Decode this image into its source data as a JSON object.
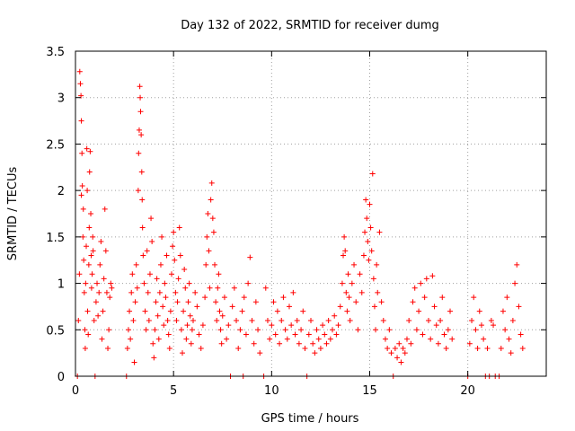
{
  "chart_data": {
    "type": "scatter",
    "title": "Day 132 of 2022, SRMTID for receiver dumg",
    "xlabel": "GPS time / hours",
    "ylabel": "SRMTID / TECUs",
    "xlim": [
      0,
      24
    ],
    "ylim": [
      0,
      3.5
    ],
    "xticks": [
      "0",
      "5",
      "10",
      "15",
      "20"
    ],
    "yticks": [
      "0",
      "0.5",
      "1",
      "1.5",
      "2",
      "2.5",
      "3",
      "3.5"
    ],
    "grid": true,
    "marker": "+",
    "color": "#ff0000",
    "series": [
      {
        "values": [
          [
            0.1,
            0.0
          ],
          [
            0.15,
            0.6
          ],
          [
            0.2,
            1.1
          ],
          [
            0.22,
            3.28
          ],
          [
            0.25,
            3.15
          ],
          [
            0.28,
            3.02
          ],
          [
            0.3,
            2.75
          ],
          [
            0.3,
            1.95
          ],
          [
            0.33,
            2.4
          ],
          [
            0.35,
            2.05
          ],
          [
            0.38,
            1.5
          ],
          [
            0.4,
            1.8
          ],
          [
            0.42,
            1.25
          ],
          [
            0.45,
            0.9
          ],
          [
            0.48,
            0.5
          ],
          [
            0.5,
            0.3
          ],
          [
            0.52,
            1.0
          ],
          [
            0.55,
            1.4
          ],
          [
            0.58,
            2.45
          ],
          [
            0.6,
            2.0
          ],
          [
            0.62,
            0.7
          ],
          [
            0.65,
            0.45
          ],
          [
            0.68,
            1.2
          ],
          [
            0.7,
            1.6
          ],
          [
            0.72,
            2.2
          ],
          [
            0.75,
            2.42
          ],
          [
            0.78,
            1.75
          ],
          [
            0.8,
            1.3
          ],
          [
            0.82,
            0.95
          ],
          [
            0.85,
            1.1
          ],
          [
            0.88,
            1.5
          ],
          [
            0.9,
            1.35
          ],
          [
            0.95,
            0.6
          ],
          [
            1.0,
            0.0
          ],
          [
            1.05,
            0.8
          ],
          [
            1.1,
            1.0
          ],
          [
            1.15,
            0.65
          ],
          [
            1.2,
            0.9
          ],
          [
            1.25,
            1.2
          ],
          [
            1.3,
            1.45
          ],
          [
            1.35,
            0.4
          ],
          [
            1.4,
            0.7
          ],
          [
            1.45,
            1.05
          ],
          [
            1.5,
            1.8
          ],
          [
            1.55,
            1.35
          ],
          [
            1.6,
            0.9
          ],
          [
            1.65,
            0.3
          ],
          [
            1.7,
            0.5
          ],
          [
            1.75,
            0.85
          ],
          [
            1.8,
            1.0
          ],
          [
            1.85,
            0.95
          ],
          [
            2.6,
            0.0
          ],
          [
            2.65,
            0.3
          ],
          [
            2.7,
            0.5
          ],
          [
            2.75,
            0.7
          ],
          [
            2.8,
            0.4
          ],
          [
            2.85,
            0.9
          ],
          [
            2.9,
            1.1
          ],
          [
            2.95,
            0.6
          ],
          [
            3.0,
            0.15
          ],
          [
            3.05,
            0.8
          ],
          [
            3.1,
            1.2
          ],
          [
            3.15,
            0.95
          ],
          [
            3.2,
            2.0
          ],
          [
            3.22,
            2.4
          ],
          [
            3.25,
            2.65
          ],
          [
            3.28,
            3.12
          ],
          [
            3.3,
            3.0
          ],
          [
            3.32,
            2.85
          ],
          [
            3.35,
            2.6
          ],
          [
            3.38,
            2.2
          ],
          [
            3.4,
            1.9
          ],
          [
            3.42,
            1.6
          ],
          [
            3.45,
            1.3
          ],
          [
            3.5,
            1.0
          ],
          [
            3.55,
            0.7
          ],
          [
            3.6,
            0.5
          ],
          [
            3.65,
            1.35
          ],
          [
            3.7,
            0.9
          ],
          [
            3.75,
            0.6
          ],
          [
            3.8,
            1.1
          ],
          [
            3.85,
            1.7
          ],
          [
            3.9,
            1.45
          ],
          [
            3.95,
            0.35
          ],
          [
            4.0,
            0.2
          ],
          [
            4.05,
            0.5
          ],
          [
            4.1,
            0.8
          ],
          [
            4.15,
            1.05
          ],
          [
            4.2,
            0.65
          ],
          [
            4.25,
            0.4
          ],
          [
            4.3,
            0.9
          ],
          [
            4.35,
            1.2
          ],
          [
            4.4,
            1.5
          ],
          [
            4.45,
            0.75
          ],
          [
            4.5,
            0.55
          ],
          [
            4.55,
            1.0
          ],
          [
            4.6,
            0.85
          ],
          [
            4.65,
            1.3
          ],
          [
            4.7,
            0.6
          ],
          [
            4.75,
            0.45
          ],
          [
            4.8,
            0.3
          ],
          [
            4.85,
            0.7
          ],
          [
            4.9,
            1.1
          ],
          [
            4.95,
            1.4
          ],
          [
            5.0,
            1.55
          ],
          [
            5.05,
            1.25
          ],
          [
            5.1,
            0.9
          ],
          [
            5.15,
            0.6
          ],
          [
            5.2,
            0.8
          ],
          [
            5.25,
            1.05
          ],
          [
            5.3,
            1.6
          ],
          [
            5.35,
            1.3
          ],
          [
            5.4,
            0.5
          ],
          [
            5.45,
            0.25
          ],
          [
            5.5,
            0.7
          ],
          [
            5.55,
            1.15
          ],
          [
            5.6,
            0.95
          ],
          [
            5.65,
            0.4
          ],
          [
            5.7,
            0.55
          ],
          [
            5.75,
            0.8
          ],
          [
            5.8,
            1.0
          ],
          [
            5.85,
            0.65
          ],
          [
            5.9,
            0.35
          ],
          [
            5.95,
            0.5
          ],
          [
            6.0,
            0.6
          ],
          [
            6.1,
            0.9
          ],
          [
            6.2,
            0.75
          ],
          [
            6.3,
            0.45
          ],
          [
            6.4,
            0.3
          ],
          [
            6.5,
            0.55
          ],
          [
            6.6,
            0.85
          ],
          [
            6.65,
            1.2
          ],
          [
            6.7,
            1.5
          ],
          [
            6.75,
            1.75
          ],
          [
            6.8,
            1.35
          ],
          [
            6.85,
            0.95
          ],
          [
            6.9,
            1.9
          ],
          [
            6.95,
            2.08
          ],
          [
            7.0,
            1.7
          ],
          [
            7.05,
            1.55
          ],
          [
            7.1,
            1.2
          ],
          [
            7.15,
            0.8
          ],
          [
            7.2,
            0.6
          ],
          [
            7.25,
            0.95
          ],
          [
            7.3,
            1.1
          ],
          [
            7.35,
            0.7
          ],
          [
            7.4,
            0.5
          ],
          [
            7.45,
            0.35
          ],
          [
            7.5,
            0.65
          ],
          [
            7.6,
            0.85
          ],
          [
            7.7,
            0.4
          ],
          [
            7.8,
            0.55
          ],
          [
            7.9,
            0.0
          ],
          [
            8.0,
            0.75
          ],
          [
            8.1,
            0.95
          ],
          [
            8.2,
            0.6
          ],
          [
            8.3,
            0.3
          ],
          [
            8.4,
            0.5
          ],
          [
            8.5,
            0.7
          ],
          [
            8.55,
            0.0
          ],
          [
            8.6,
            0.85
          ],
          [
            8.7,
            0.45
          ],
          [
            8.8,
            1.0
          ],
          [
            8.9,
            1.28
          ],
          [
            9.0,
            0.6
          ],
          [
            9.1,
            0.35
          ],
          [
            9.2,
            0.8
          ],
          [
            9.3,
            0.5
          ],
          [
            9.4,
            0.25
          ],
          [
            9.6,
            0.0
          ],
          [
            9.7,
            0.95
          ],
          [
            9.8,
            0.6
          ],
          [
            9.9,
            0.4
          ],
          [
            10.0,
            0.55
          ],
          [
            10.1,
            0.8
          ],
          [
            10.2,
            0.45
          ],
          [
            10.3,
            0.7
          ],
          [
            10.4,
            0.35
          ],
          [
            10.5,
            0.6
          ],
          [
            10.6,
            0.85
          ],
          [
            10.7,
            0.5
          ],
          [
            10.8,
            0.4
          ],
          [
            10.9,
            0.75
          ],
          [
            11.0,
            0.55
          ],
          [
            11.1,
            0.9
          ],
          [
            11.2,
            0.45
          ],
          [
            11.3,
            0.6
          ],
          [
            11.4,
            0.35
          ],
          [
            11.5,
            0.5
          ],
          [
            11.6,
            0.7
          ],
          [
            11.7,
            0.3
          ],
          [
            11.8,
            0.0
          ],
          [
            11.9,
            0.45
          ],
          [
            12.0,
            0.6
          ],
          [
            12.1,
            0.35
          ],
          [
            12.2,
            0.25
          ],
          [
            12.3,
            0.5
          ],
          [
            12.4,
            0.4
          ],
          [
            12.5,
            0.3
          ],
          [
            12.6,
            0.55
          ],
          [
            12.7,
            0.45
          ],
          [
            12.8,
            0.35
          ],
          [
            12.9,
            0.6
          ],
          [
            13.0,
            0.4
          ],
          [
            13.1,
            0.5
          ],
          [
            13.2,
            0.65
          ],
          [
            13.3,
            0.45
          ],
          [
            13.4,
            0.55
          ],
          [
            13.5,
            0.75
          ],
          [
            13.6,
            1.0
          ],
          [
            13.65,
            1.3
          ],
          [
            13.7,
            1.5
          ],
          [
            13.75,
            1.35
          ],
          [
            13.8,
            0.9
          ],
          [
            13.85,
            0.7
          ],
          [
            13.9,
            1.1
          ],
          [
            13.95,
            0.85
          ],
          [
            14.0,
            0.6
          ],
          [
            14.1,
            1.0
          ],
          [
            14.2,
            1.2
          ],
          [
            14.3,
            0.8
          ],
          [
            14.4,
            0.5
          ],
          [
            14.5,
            1.1
          ],
          [
            14.6,
            0.9
          ],
          [
            14.7,
            1.3
          ],
          [
            14.75,
            1.55
          ],
          [
            14.8,
            1.9
          ],
          [
            14.85,
            1.7
          ],
          [
            14.9,
            1.45
          ],
          [
            14.95,
            1.25
          ],
          [
            15.0,
            1.85
          ],
          [
            15.05,
            1.6
          ],
          [
            15.1,
            1.35
          ],
          [
            15.15,
            2.18
          ],
          [
            15.2,
            1.05
          ],
          [
            15.25,
            0.75
          ],
          [
            15.3,
            0.5
          ],
          [
            15.35,
            1.2
          ],
          [
            15.4,
            0.9
          ],
          [
            15.5,
            1.55
          ],
          [
            15.6,
            0.8
          ],
          [
            15.7,
            0.6
          ],
          [
            15.8,
            0.4
          ],
          [
            15.9,
            0.3
          ],
          [
            16.0,
            0.5
          ],
          [
            16.1,
            0.25
          ],
          [
            16.2,
            0.0
          ],
          [
            16.3,
            0.3
          ],
          [
            16.4,
            0.2
          ],
          [
            16.5,
            0.35
          ],
          [
            16.6,
            0.15
          ],
          [
            16.7,
            0.3
          ],
          [
            16.8,
            0.25
          ],
          [
            16.9,
            0.4
          ],
          [
            17.0,
            0.6
          ],
          [
            17.1,
            0.35
          ],
          [
            17.2,
            0.8
          ],
          [
            17.3,
            0.95
          ],
          [
            17.4,
            0.5
          ],
          [
            17.5,
            0.7
          ],
          [
            17.6,
            1.0
          ],
          [
            17.7,
            0.45
          ],
          [
            17.8,
            0.85
          ],
          [
            17.9,
            1.05
          ],
          [
            18.0,
            0.6
          ],
          [
            18.1,
            0.4
          ],
          [
            18.2,
            1.08
          ],
          [
            18.3,
            0.75
          ],
          [
            18.4,
            0.55
          ],
          [
            18.5,
            0.35
          ],
          [
            18.6,
            0.6
          ],
          [
            18.7,
            0.85
          ],
          [
            18.8,
            0.45
          ],
          [
            18.9,
            0.3
          ],
          [
            19.0,
            0.5
          ],
          [
            19.1,
            0.7
          ],
          [
            19.2,
            0.4
          ],
          [
            20.0,
            0.0
          ],
          [
            20.1,
            0.35
          ],
          [
            20.2,
            0.6
          ],
          [
            20.3,
            0.85
          ],
          [
            20.4,
            0.5
          ],
          [
            20.5,
            0.3
          ],
          [
            20.6,
            0.7
          ],
          [
            20.7,
            0.55
          ],
          [
            20.8,
            0.4
          ],
          [
            20.9,
            0.0
          ],
          [
            21.0,
            0.3
          ],
          [
            21.1,
            0.0
          ],
          [
            21.2,
            0.6
          ],
          [
            21.3,
            0.55
          ],
          [
            21.4,
            0.0
          ],
          [
            21.6,
            0.0
          ],
          [
            21.7,
            0.3
          ],
          [
            21.8,
            0.7
          ],
          [
            21.9,
            0.5
          ],
          [
            22.0,
            0.85
          ],
          [
            22.1,
            0.4
          ],
          [
            22.2,
            0.25
          ],
          [
            22.3,
            0.6
          ],
          [
            22.4,
            1.0
          ],
          [
            22.5,
            1.2
          ],
          [
            22.6,
            0.75
          ],
          [
            22.7,
            0.45
          ],
          [
            22.8,
            0.3
          ]
        ]
      }
    ]
  }
}
